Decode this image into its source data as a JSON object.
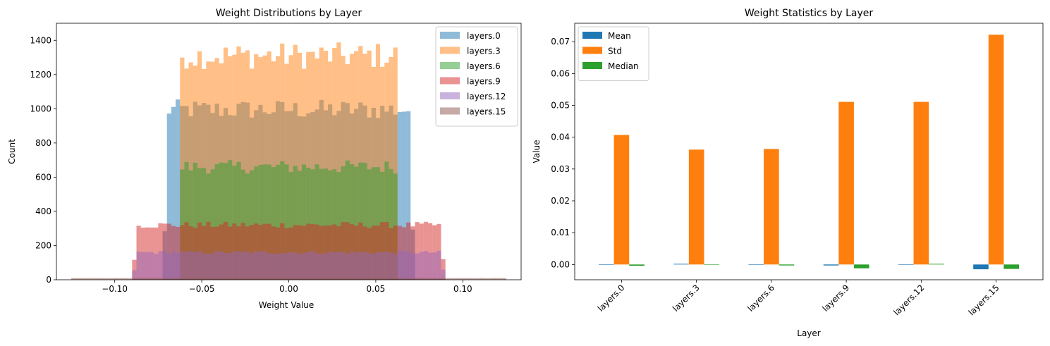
{
  "chart_data": [
    {
      "type": "histogram",
      "title": "Weight Distributions by Layer",
      "xlabel": "Weight Value",
      "ylabel": "Count",
      "xlim": [
        -0.1335,
        0.1335
      ],
      "ylim": [
        0,
        1500
      ],
      "xticks": [
        -0.1,
        -0.05,
        0.0,
        0.05,
        0.1
      ],
      "xtick_labels": [
        "−0.10",
        "−0.05",
        "0.00",
        "0.05",
        "0.10"
      ],
      "yticks": [
        0,
        200,
        400,
        600,
        800,
        1000,
        1200,
        1400
      ],
      "ytick_labels": [
        "0",
        "200",
        "400",
        "600",
        "800",
        "1000",
        "1200",
        "1400"
      ],
      "legend_position": "top-right",
      "bin_count": 100,
      "bin_range": [
        -0.125,
        0.125
      ],
      "alpha": 0.5,
      "series": [
        {
          "name": "layers.0",
          "color": "#1f77b4",
          "range": [
            -0.0707,
            0.0707
          ],
          "level": 995
        },
        {
          "name": "layers.3",
          "color": "#ff7f0e",
          "range": [
            -0.0625,
            0.0625
          ],
          "level": 1310
        },
        {
          "name": "layers.6",
          "color": "#2ca02c",
          "range": [
            -0.0625,
            0.0625
          ],
          "level": 660
        },
        {
          "name": "layers.9",
          "color": "#d62728",
          "range": [
            -0.0884,
            0.0884
          ],
          "level": 320
        },
        {
          "name": "layers.12",
          "color": "#9467bd",
          "range": [
            -0.0884,
            0.0884
          ],
          "level": 160
        },
        {
          "name": "layers.15",
          "color": "#8c564b",
          "range": [
            -0.125,
            0.125
          ],
          "level": 10
        }
      ]
    },
    {
      "type": "bar",
      "title": "Weight Statistics by Layer",
      "xlabel": "Layer",
      "ylabel": "Value",
      "ylim": [
        -0.0048,
        0.0758
      ],
      "yticks": [
        0.0,
        0.01,
        0.02,
        0.03,
        0.04,
        0.05,
        0.06,
        0.07
      ],
      "ytick_labels": [
        "0.00",
        "0.01",
        "0.02",
        "0.03",
        "0.04",
        "0.05",
        "0.06",
        "0.07"
      ],
      "legend_position": "top-left",
      "categories": [
        "layers.0",
        "layers.3",
        "layers.6",
        "layers.9",
        "layers.12",
        "layers.15"
      ],
      "series": [
        {
          "name": "Mean",
          "color": "#1f77b4",
          "values": [
            0.0,
            0.0002,
            0.0,
            -0.0003,
            0.0,
            -0.0015
          ]
        },
        {
          "name": "Std",
          "color": "#ff7f0e",
          "values": [
            0.0407,
            0.0361,
            0.0363,
            0.0511,
            0.0511,
            0.0722
          ]
        },
        {
          "name": "Median",
          "color": "#2ca02c",
          "values": [
            -0.0004,
            0.0,
            -0.0003,
            -0.0012,
            0.0002,
            -0.0014
          ]
        }
      ]
    }
  ]
}
